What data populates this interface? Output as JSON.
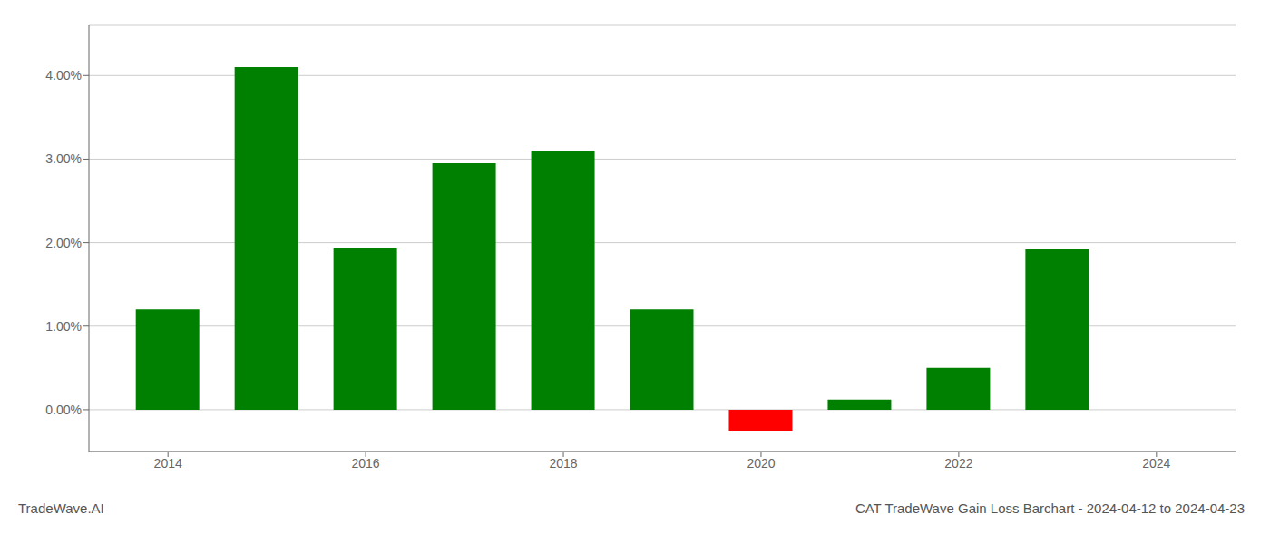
{
  "chart_data": {
    "type": "bar",
    "title": "CAT TradeWave Gain Loss Barchart - 2024-04-12 to 2024-04-23",
    "annotations": [
      "TradeWave.AI"
    ],
    "x": [
      2014,
      2015,
      2016,
      2017,
      2018,
      2019,
      2020,
      2021,
      2022,
      2023
    ],
    "values": [
      0.012,
      0.041,
      0.0193,
      0.0295,
      0.031,
      0.012,
      -0.0025,
      0.0012,
      0.005,
      0.0192
    ],
    "colors": [
      "#008000",
      "#008000",
      "#008000",
      "#008000",
      "#008000",
      "#008000",
      "#ff0000",
      "#008000",
      "#008000",
      "#008000"
    ],
    "xlim": [
      2013.2,
      2024.8
    ],
    "xticks": [
      2014,
      2016,
      2018,
      2020,
      2022,
      2024
    ],
    "ylim": [
      -0.005,
      0.046
    ],
    "yticks": [
      {
        "value": 0.0,
        "label": "0.00%"
      },
      {
        "value": 0.01,
        "label": "1.00%"
      },
      {
        "value": 0.02,
        "label": "2.00%"
      },
      {
        "value": 0.03,
        "label": "3.00%"
      },
      {
        "value": 0.04,
        "label": "4.00%"
      }
    ],
    "grid": true
  }
}
